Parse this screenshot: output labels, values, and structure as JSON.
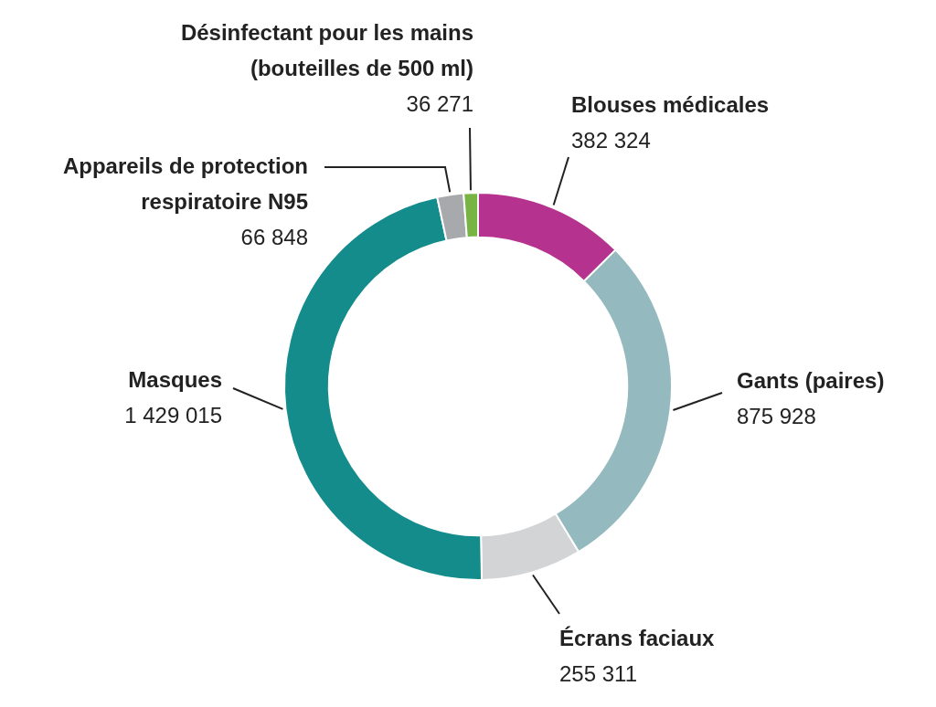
{
  "chart_data": {
    "type": "doughnut",
    "categories": [
      "Blouses médicales",
      "Gants (paires)",
      "Écrans faciaux",
      "Masques",
      "Appareils de protection\nrespiratoire N95",
      "Désinfectant pour les mains\n(bouteilles de 500 ml)"
    ],
    "values": [
      382324,
      875928,
      255311,
      1429015,
      66848,
      36271
    ],
    "value_labels": [
      "382 324",
      "875 928",
      "255 311",
      "1 429 015",
      "66 848",
      "36 271"
    ],
    "colors": [
      "#b5338f",
      "#94b9be",
      "#d3d4d6",
      "#148c8c",
      "#a7a9ac",
      "#78b443"
    ],
    "data_labels": true
  }
}
